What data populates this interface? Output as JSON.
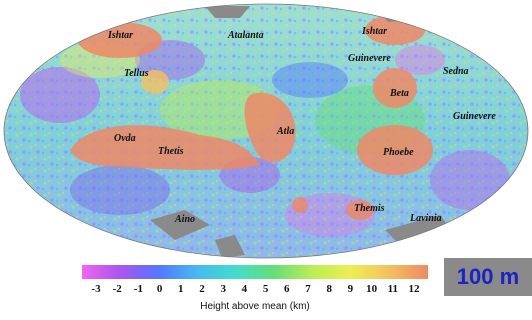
{
  "map": {
    "labels": [
      {
        "id": "ishtar-w",
        "text": "Ishtar"
      },
      {
        "id": "atalanta",
        "text": "Atalanta"
      },
      {
        "id": "ishtar-e",
        "text": "Ishtar"
      },
      {
        "id": "guinevere-n",
        "text": "Guinevere"
      },
      {
        "id": "tellus",
        "text": "Tellus"
      },
      {
        "id": "sedna",
        "text": "Sedna"
      },
      {
        "id": "beta",
        "text": "Beta"
      },
      {
        "id": "guinevere-e",
        "text": "Guinevere"
      },
      {
        "id": "ovda",
        "text": "Ovda"
      },
      {
        "id": "thetis",
        "text": "Thetis"
      },
      {
        "id": "atla",
        "text": "Atla"
      },
      {
        "id": "phoebe",
        "text": "Phoebe"
      },
      {
        "id": "themis",
        "text": "Themis"
      },
      {
        "id": "aino",
        "text": "Aino"
      },
      {
        "id": "lavinia",
        "text": "Lavinia"
      }
    ]
  },
  "legend": {
    "ticks": [
      "-3",
      "-2",
      "-1",
      "0",
      "1",
      "2",
      "3",
      "4",
      "5",
      "6",
      "7",
      "8",
      "9",
      "10",
      "11",
      "12"
    ],
    "axis_label": "Height above mean (km)",
    "colors": [
      "#ee66ee",
      "#aa55ee",
      "#5577ff",
      "#44bbee",
      "#44ddcc",
      "#66dd77",
      "#bbee55",
      "#eeee55",
      "#f4c060",
      "#ee8866"
    ]
  },
  "scale_label": "100 m"
}
